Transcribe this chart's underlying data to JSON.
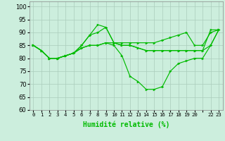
{
  "background_color": "#cceedd",
  "grid_color": "#aaccbb",
  "line_color": "#00bb00",
  "xlabel": "Humidité relative (%)",
  "xlabel_color": "#00bb00",
  "ylim": [
    60,
    102
  ],
  "yticks": [
    60,
    65,
    70,
    75,
    80,
    85,
    90,
    95,
    100
  ],
  "xtick_labels": [
    "0",
    "1",
    "2",
    "3",
    "4",
    "5",
    "6",
    "7",
    "8",
    "9",
    "10",
    "11",
    "12",
    "13",
    "14",
    "15",
    "16",
    "17",
    "18",
    "19",
    "20",
    "",
    "22",
    "23"
  ],
  "series": [
    [
      85,
      83,
      80,
      80,
      81,
      82,
      84,
      85,
      85,
      86,
      86,
      86,
      86,
      86,
      86,
      86,
      87,
      88,
      89,
      90,
      85,
      85,
      90,
      91
    ],
    [
      85,
      83,
      80,
      80,
      81,
      82,
      84,
      85,
      85,
      86,
      85,
      81,
      73,
      71,
      68,
      68,
      69,
      75,
      78,
      79,
      80,
      80,
      85,
      91
    ],
    [
      85,
      83,
      80,
      80,
      81,
      82,
      85,
      89,
      93,
      92,
      86,
      85,
      85,
      84,
      83,
      83,
      83,
      83,
      83,
      83,
      83,
      83,
      85,
      91
    ],
    [
      85,
      83,
      80,
      80,
      81,
      82,
      85,
      89,
      90,
      92,
      86,
      85,
      85,
      84,
      83,
      83,
      83,
      83,
      83,
      83,
      83,
      83,
      91,
      91
    ]
  ]
}
